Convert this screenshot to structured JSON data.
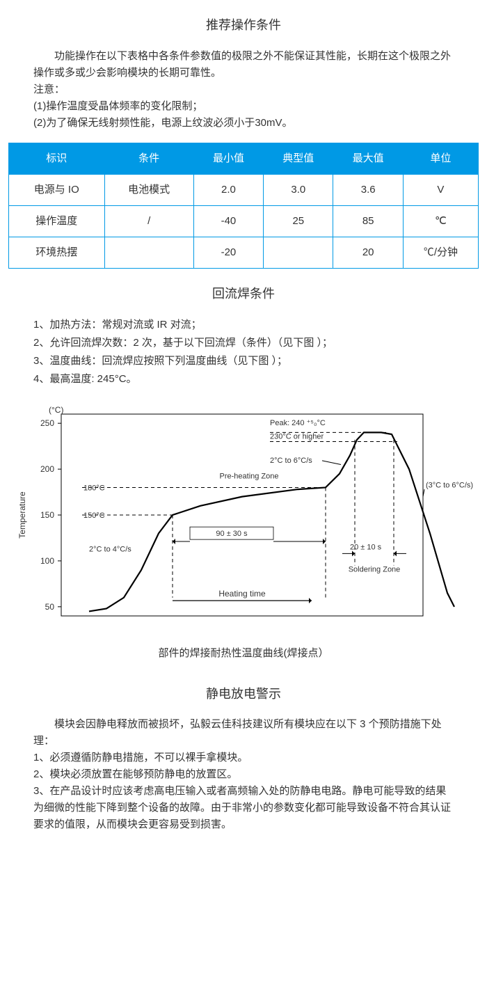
{
  "section1": {
    "title": "推荐操作条件",
    "para1": "功能操作在以下表格中各条件参数值的极限之外不能保证其性能，长期在这个极限之外操作或多或少会影响模块的长期可靠性。",
    "note_label": "注意：",
    "note1": "(1)操作温度受晶体频率的变化限制；",
    "note2": "(2)为了确保无线射频性能，电源上纹波必须小于30mV。"
  },
  "table": {
    "header_bg": "#0099e5",
    "header_fg": "#ffffff",
    "border_color": "#0099e5",
    "columns": [
      "标识",
      "条件",
      "最小值",
      "典型值",
      "最大值",
      "单位"
    ],
    "rows": [
      [
        "电源与 IO",
        "电池模式",
        "2.0",
        "3.0",
        "3.6",
        "V"
      ],
      [
        "操作温度",
        "/",
        "-40",
        "25",
        "85",
        "℃"
      ],
      [
        "环境热摆",
        "",
        "-20",
        "",
        "20",
        "℃/分钟"
      ]
    ]
  },
  "section2": {
    "title": "回流焊条件",
    "items": [
      "1、加热方法：常规对流或 IR 对流；",
      "2、允许回流焊次数：2 次，基于以下回流焊（条件）（见下图 ）；",
      "3、温度曲线：回流焊应按照下列温度曲线（见下图 ）；",
      "4、最高温度: 245°C。"
    ]
  },
  "chart": {
    "type": "line",
    "caption": "部件的焊接耐热性温度曲线(焊接点）",
    "y_unit": "(°C)",
    "y_axis_label": "Temperature",
    "x_axis_label": "Heating time",
    "y_ticks": [
      50,
      100,
      150,
      200,
      250
    ],
    "ylim": [
      40,
      260
    ],
    "annotations": {
      "ramp_up": "2°C to 4°C/s",
      "temp_150": "150°C",
      "temp_180": "180°C",
      "preheat_zone": "Pre-heating Zone",
      "preheat_time": "90 ± 30 s",
      "peak_ramp": "2°C to 6°C/s",
      "temp_230": "230°C or higher",
      "peak": "Peak: 240 ⁺⁵₀°C",
      "solder_time": "20 ± 10 s",
      "solder_zone": "Soldering Zone",
      "cooldown": "(3°C to 6°C/s)"
    },
    "curve_points": [
      [
        40,
        45
      ],
      [
        65,
        48
      ],
      [
        90,
        60
      ],
      [
        115,
        90
      ],
      [
        140,
        130
      ],
      [
        160,
        150
      ],
      [
        200,
        160
      ],
      [
        260,
        170
      ],
      [
        340,
        178
      ],
      [
        380,
        180
      ],
      [
        400,
        195
      ],
      [
        415,
        215
      ],
      [
        425,
        232
      ],
      [
        435,
        240
      ],
      [
        460,
        240
      ],
      [
        475,
        238
      ],
      [
        500,
        200
      ],
      [
        530,
        130
      ],
      [
        555,
        65
      ],
      [
        565,
        50
      ]
    ],
    "colors": {
      "frame": "#000000",
      "curve": "#000000",
      "bg": "#ffffff",
      "text": "#333333",
      "dash": "#000000"
    },
    "line_width": 2.2,
    "tick_fontsize": 12,
    "label_fontsize": 12,
    "ann_fontsize": 11
  },
  "section3": {
    "title": "静电放电警示",
    "para1": "模块会因静电释放而被损坏，弘毅云佳科技建议所有模块应在以下 3 个预防措施下处理：",
    "items": [
      "1、必须遵循防静电措施，不可以裸手拿模块。",
      "2、模块必须放置在能够预防静电的放置区。",
      "3、在产品设计时应该考虑高电压输入或者高频输入处的防静电电路。静电可能导致的结果为细微的性能下降到整个设备的故障。由于非常小的参数变化都可能导致设备不符合其认证要求的值限，从而模块会更容易受到损害。"
    ]
  }
}
